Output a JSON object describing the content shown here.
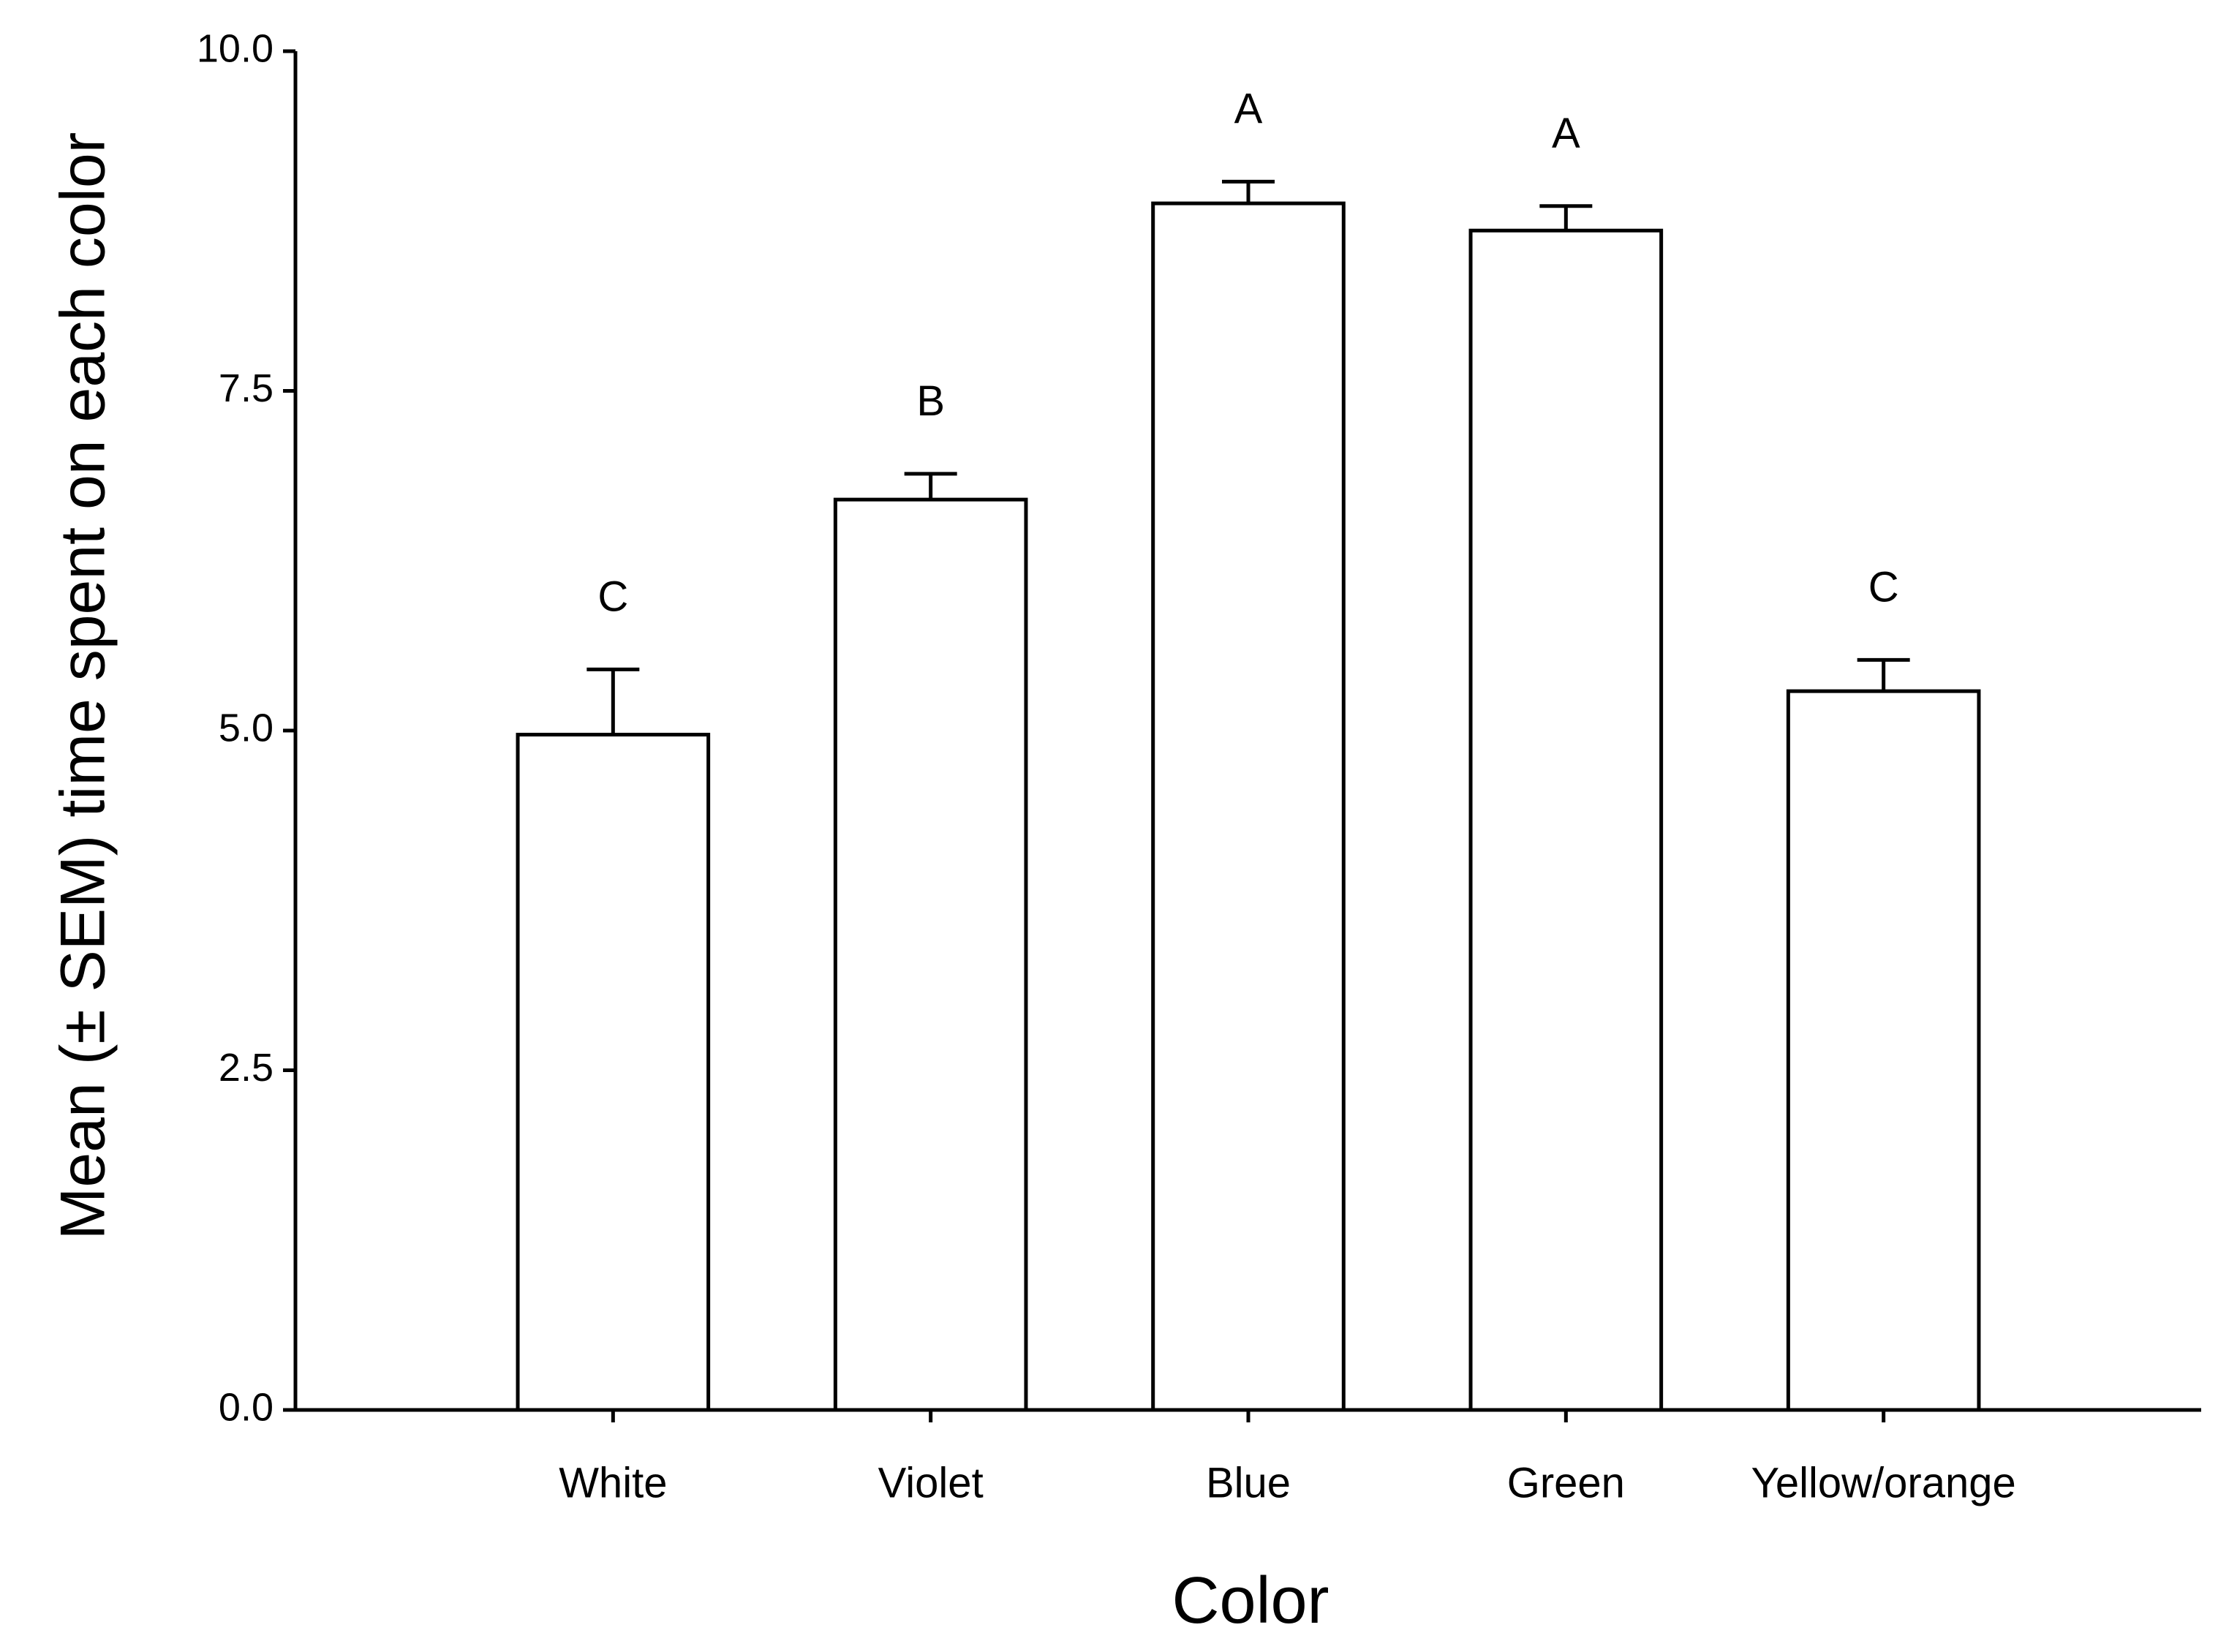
{
  "chart_data": {
    "type": "bar",
    "x_label": "Color",
    "y_label": "Mean (± SEM) time spent on each color",
    "categories": [
      "White",
      "Violet",
      "Blue",
      "Green",
      "Yellow/orange"
    ],
    "values": [
      4.97,
      6.7,
      8.88,
      8.68,
      5.29
    ],
    "errors": [
      0.48,
      0.19,
      0.16,
      0.18,
      0.23
    ],
    "annotations": [
      "C",
      "B",
      "A",
      "A",
      "C"
    ],
    "color": "#ffffff",
    "ylim": [
      0,
      10
    ],
    "yticks": [
      {
        "value": 0,
        "label": "0.0"
      },
      2.5,
      {
        "value": 5,
        "label": "5.0"
      },
      7.5,
      {
        "value": 10,
        "label": "10.0"
      }
    ]
  }
}
